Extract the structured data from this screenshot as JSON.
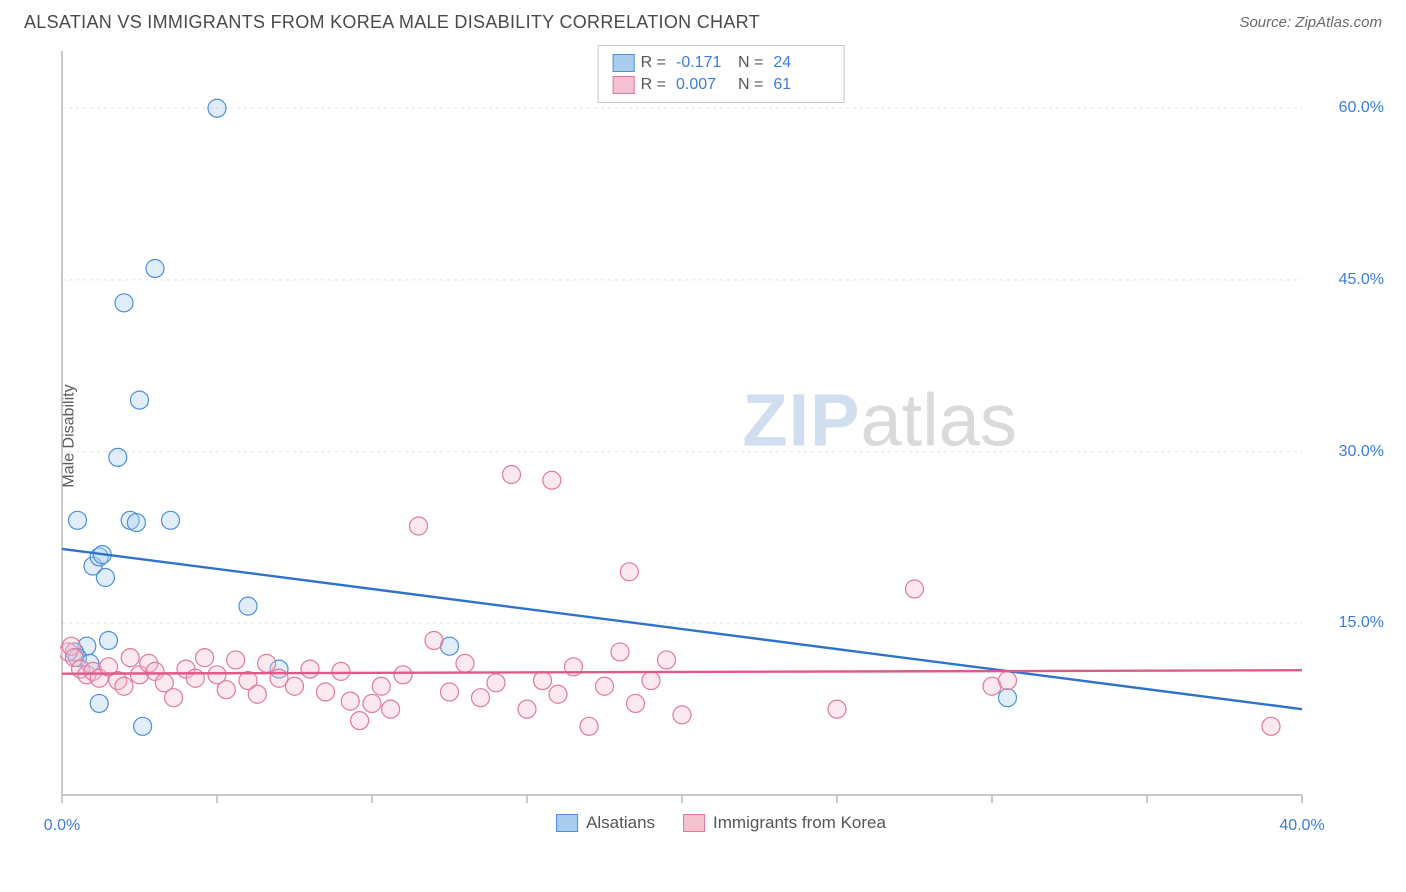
{
  "header": {
    "title": "ALSATIAN VS IMMIGRANTS FROM KOREA MALE DISABILITY CORRELATION CHART",
    "source": "Source: ZipAtlas.com"
  },
  "watermark": {
    "zip": "ZIP",
    "atlas": "atlas"
  },
  "chart": {
    "type": "scatter",
    "background_color": "#ffffff",
    "grid_color": "#e2e2e2",
    "axis_color": "#b8b8b8",
    "tick_label_color": "#3b7dd8",
    "axis_label_color": "#5a5a5a",
    "y_label": "Male Disability",
    "xlim": [
      0,
      40
    ],
    "ylim": [
      0,
      65
    ],
    "y_ticks": [
      15,
      30,
      45,
      60
    ],
    "y_tick_labels": [
      "15.0%",
      "30.0%",
      "45.0%",
      "60.0%"
    ],
    "x_ticks_minor": [
      0,
      5,
      10,
      15,
      20,
      25,
      30,
      35,
      40
    ],
    "x_tick_labels": {
      "0": "0.0%",
      "40": "40.0%"
    },
    "marker_radius": 9,
    "marker_stroke_width": 1.2,
    "marker_fill_opacity": 0.35,
    "line_width": 2.4,
    "series": [
      {
        "key": "alsatians",
        "label": "Alsatians",
        "color_stroke": "#4b8fd9",
        "color_fill": "#a9cdef",
        "line_color": "#2f72c9",
        "R": "-0.171",
        "N": "24",
        "regression": {
          "x1": 0,
          "y1": 21.5,
          "x2": 40,
          "y2": 7.5
        },
        "points": [
          [
            1.0,
            20.0
          ],
          [
            1.2,
            20.8
          ],
          [
            1.3,
            21.0
          ],
          [
            1.4,
            19.0
          ],
          [
            0.5,
            24.0
          ],
          [
            2.2,
            24.0
          ],
          [
            2.4,
            23.8
          ],
          [
            3.5,
            24.0
          ],
          [
            1.8,
            29.5
          ],
          [
            2.5,
            34.5
          ],
          [
            2.0,
            43.0
          ],
          [
            3.0,
            46.0
          ],
          [
            5.0,
            60.0
          ],
          [
            0.8,
            13.0
          ],
          [
            0.4,
            12.5
          ],
          [
            0.5,
            12.0
          ],
          [
            1.2,
            8.0
          ],
          [
            2.6,
            6.0
          ],
          [
            6.0,
            16.5
          ],
          [
            7.0,
            11.0
          ],
          [
            12.5,
            13.0
          ],
          [
            30.5,
            8.5
          ],
          [
            1.5,
            13.5
          ],
          [
            0.9,
            11.5
          ]
        ]
      },
      {
        "key": "korea",
        "label": "Immigrants from Korea",
        "color_stroke": "#e07a9a",
        "color_fill": "#f4c1d0",
        "line_color": "#e05a87",
        "R": "0.007",
        "N": "61",
        "regression": {
          "x1": 0,
          "y1": 10.6,
          "x2": 40,
          "y2": 10.9
        },
        "points": [
          [
            0.2,
            12.5
          ],
          [
            0.3,
            13.0
          ],
          [
            0.4,
            12.0
          ],
          [
            0.6,
            11.0
          ],
          [
            0.8,
            10.5
          ],
          [
            1.0,
            10.8
          ],
          [
            1.2,
            10.2
          ],
          [
            1.5,
            11.2
          ],
          [
            1.8,
            10.0
          ],
          [
            2.0,
            9.5
          ],
          [
            2.2,
            12.0
          ],
          [
            2.5,
            10.5
          ],
          [
            2.8,
            11.5
          ],
          [
            3.0,
            10.8
          ],
          [
            3.3,
            9.8
          ],
          [
            3.6,
            8.5
          ],
          [
            4.0,
            11.0
          ],
          [
            4.3,
            10.2
          ],
          [
            4.6,
            12.0
          ],
          [
            5.0,
            10.5
          ],
          [
            5.3,
            9.2
          ],
          [
            5.6,
            11.8
          ],
          [
            6.0,
            10.0
          ],
          [
            6.3,
            8.8
          ],
          [
            6.6,
            11.5
          ],
          [
            7.0,
            10.2
          ],
          [
            7.5,
            9.5
          ],
          [
            8.0,
            11.0
          ],
          [
            8.5,
            9.0
          ],
          [
            9.0,
            10.8
          ],
          [
            9.3,
            8.2
          ],
          [
            9.6,
            6.5
          ],
          [
            10.0,
            8.0
          ],
          [
            10.3,
            9.5
          ],
          [
            10.6,
            7.5
          ],
          [
            11.0,
            10.5
          ],
          [
            11.5,
            23.5
          ],
          [
            12.0,
            13.5
          ],
          [
            12.5,
            9.0
          ],
          [
            13.0,
            11.5
          ],
          [
            13.5,
            8.5
          ],
          [
            14.0,
            9.8
          ],
          [
            14.5,
            28.0
          ],
          [
            15.0,
            7.5
          ],
          [
            15.5,
            10.0
          ],
          [
            15.8,
            27.5
          ],
          [
            16.0,
            8.8
          ],
          [
            16.5,
            11.2
          ],
          [
            17.0,
            6.0
          ],
          [
            17.5,
            9.5
          ],
          [
            18.0,
            12.5
          ],
          [
            18.3,
            19.5
          ],
          [
            18.5,
            8.0
          ],
          [
            19.0,
            10.0
          ],
          [
            19.5,
            11.8
          ],
          [
            20.0,
            7.0
          ],
          [
            25.0,
            7.5
          ],
          [
            27.5,
            18.0
          ],
          [
            30.0,
            9.5
          ],
          [
            30.5,
            10.0
          ],
          [
            39.0,
            6.0
          ]
        ]
      }
    ],
    "legend_top_labels": {
      "R": "R =",
      "N": "N ="
    },
    "legend_top_border": "#c8c8c8"
  }
}
